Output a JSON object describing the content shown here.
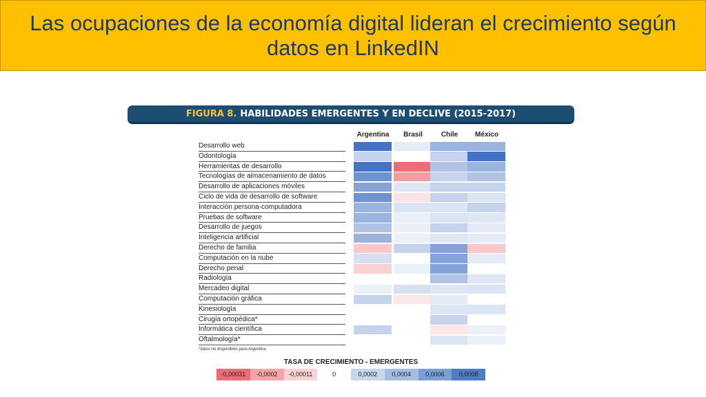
{
  "slide": {
    "title": "Las ocupaciones de la economía digital lideran el crecimiento según datos en LinkedIN"
  },
  "figure": {
    "label": "FIGURA 8.",
    "title": "HABILIDADES EMERGENTES Y EN DECLIVE (2015-2017)",
    "footnote": "*datos no disponibles para Argentina"
  },
  "chart_data": {
    "type": "heatmap",
    "columns": [
      "Argentina",
      "Brasil",
      "Chile",
      "México"
    ],
    "rows": [
      "Desarrollo web",
      "Odontología",
      "Herramientas de desarrollo",
      "Tecnologías de almacenamiento de datos",
      "Desarrollo de aplicaciones móviles",
      "Ciclo de vida de desarrollo de software",
      "Interacción persona-computadora",
      "Pruebas de software",
      "Desarrollo de juegos",
      "Inteligencia artificial",
      "Derecho de familia",
      "Computación en la nube",
      "Derecho penal",
      "Radiología",
      "Mercadeo digital",
      "Computación gráfica",
      "Kinesiología",
      "Cirugía ortopédica*",
      "Informática científica",
      "Oftalmología*"
    ],
    "values": [
      [
        0.0008,
        5e-05,
        0.0004,
        0.0004
      ],
      [
        0.0002,
        0.0,
        0.0002,
        0.0008
      ],
      [
        0.0008,
        -0.00031,
        0.0003,
        0.0004
      ],
      [
        0.0006,
        -0.0002,
        0.0002,
        0.0003
      ],
      [
        0.0005,
        8e-05,
        0.0002,
        0.0002
      ],
      [
        0.0006,
        -4e-05,
        0.0002,
        0.0001
      ],
      [
        0.0004,
        0.0001,
        0.0001,
        0.0002
      ],
      [
        0.0004,
        3e-05,
        0.0001,
        8e-05
      ],
      [
        0.0003,
        3e-05,
        0.0002,
        6e-05
      ],
      [
        0.0004,
        2e-05,
        8e-05,
        5e-05
      ],
      [
        -0.0001,
        0.0002,
        0.0005,
        -0.0001
      ],
      [
        0.00012,
        0.0,
        0.0005,
        5e-05
      ],
      [
        -8e-05,
        2e-05,
        0.0005,
        0.0
      ],
      [
        0.0,
        0.0,
        0.0003,
        8e-05
      ],
      [
        3e-05,
        0.00012,
        8e-05,
        0.0001
      ],
      [
        0.0002,
        -3e-05,
        5e-05,
        0.0
      ],
      [
        0.0,
        0.0,
        0.0001,
        0.0001
      ],
      [
        null,
        0.0,
        0.0002,
        0.0
      ],
      [
        0.0002,
        0.0,
        -3e-05,
        2e-05
      ],
      [
        null,
        0.0,
        0.0001,
        2e-05
      ]
    ],
    "legend": {
      "title": "TASA DE CRECIMIENTO - EMERGENTES",
      "ticks": [
        "-0,00031",
        "-0,0002",
        "-0,00011",
        "0",
        "0,0002",
        "0,0004",
        "0,0006",
        "0,0008"
      ],
      "tick_values": [
        -0.00031,
        -0.0002,
        -0.00011,
        0,
        0.0002,
        0.0004,
        0.0006,
        0.0008
      ],
      "colors": [
        "#ec6d76",
        "#f3a5aa",
        "#f9d2d4",
        "#ffffff",
        "#c7d6ec",
        "#a2bde2",
        "#7a9fd4",
        "#4f7cc4"
      ]
    }
  }
}
